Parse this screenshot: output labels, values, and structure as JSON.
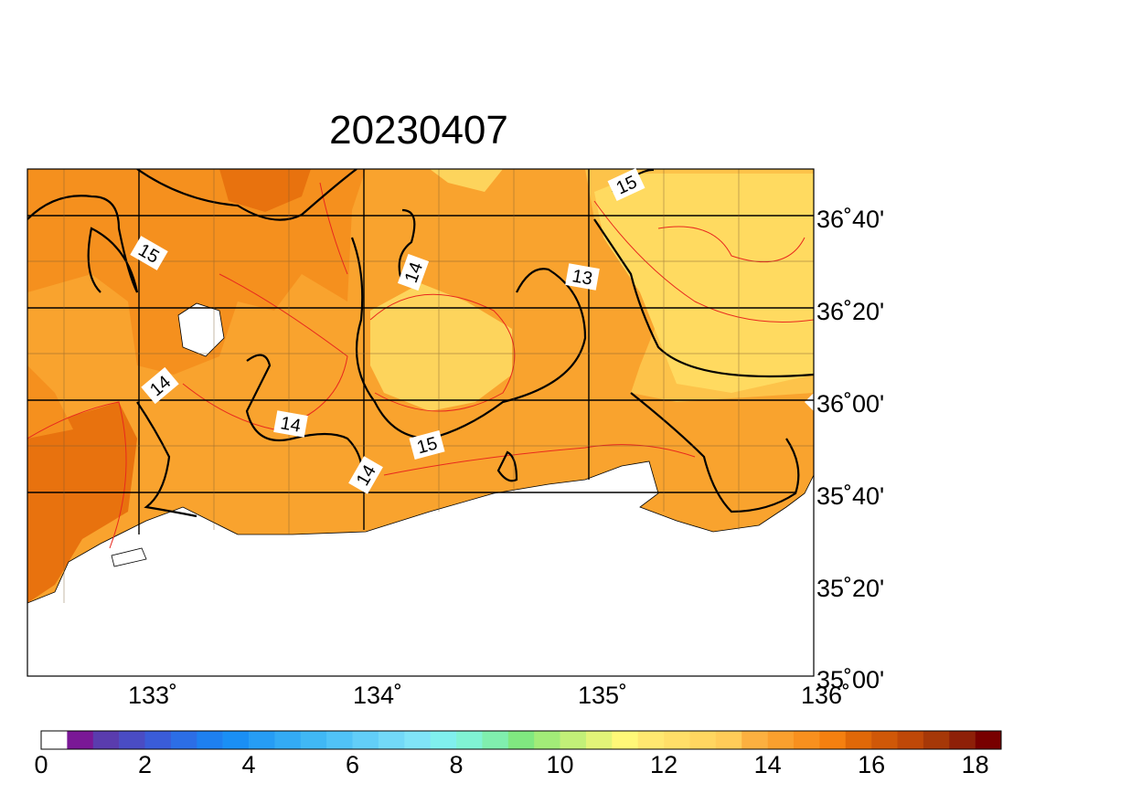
{
  "title": "20230407",
  "map": {
    "lon_labels": [
      "133˚",
      "134˚",
      "135˚",
      "136˚"
    ],
    "lat_labels": [
      "36˚40'",
      "36˚20'",
      "36˚00'",
      "35˚40'",
      "35˚20'",
      "35˚00'"
    ],
    "contour_labels": [
      "15",
      "14",
      "14",
      "13",
      "15",
      "14",
      "14",
      "15"
    ]
  },
  "colorbar": {
    "ticks": [
      0,
      2,
      4,
      6,
      8,
      10,
      12,
      14,
      16,
      18
    ],
    "colors": [
      "#ffffff",
      "#7a1896",
      "#5a3cae",
      "#4a4cc4",
      "#3a5cd8",
      "#2c6ee6",
      "#1e80f0",
      "#1a8ff5",
      "#269df5",
      "#33abf5",
      "#40b8f5",
      "#50c3f7",
      "#62cef8",
      "#72d9f8",
      "#80e4f8",
      "#80f0ee",
      "#80f3d4",
      "#80efae",
      "#80e880",
      "#a2ec78",
      "#c2f078",
      "#e2f478",
      "#fff878",
      "#ffe870",
      "#ffdf68",
      "#ffd660",
      "#ffcc58",
      "#fcb040",
      "#faa02e",
      "#f8901e",
      "#f58010",
      "#e06808",
      "#d05808",
      "#bf4808",
      "#a63808",
      "#8e2008",
      "#780000"
    ]
  }
}
